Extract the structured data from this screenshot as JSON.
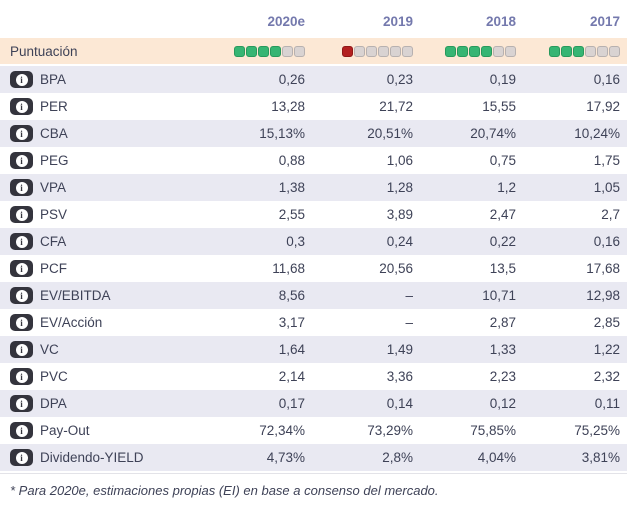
{
  "table": {
    "columns": [
      "2020e",
      "2019",
      "2018",
      "2017"
    ],
    "score_row": {
      "label": "Puntuación",
      "ratings": [
        {
          "filled": 4,
          "total": 6,
          "color": "green"
        },
        {
          "filled": 1,
          "total": 6,
          "color": "red"
        },
        {
          "filled": 4,
          "total": 6,
          "color": "green"
        },
        {
          "filled": 3,
          "total": 6,
          "color": "green"
        }
      ]
    },
    "rows": [
      {
        "label": "BPA",
        "values": [
          "0,26",
          "0,23",
          "0,19",
          "0,16"
        ]
      },
      {
        "label": "PER",
        "values": [
          "13,28",
          "21,72",
          "15,55",
          "17,92"
        ]
      },
      {
        "label": "CBA",
        "values": [
          "15,13%",
          "20,51%",
          "20,74%",
          "10,24%"
        ]
      },
      {
        "label": "PEG",
        "values": [
          "0,88",
          "1,06",
          "0,75",
          "1,75"
        ]
      },
      {
        "label": "VPA",
        "values": [
          "1,38",
          "1,28",
          "1,2",
          "1,05"
        ]
      },
      {
        "label": "PSV",
        "values": [
          "2,55",
          "3,89",
          "2,47",
          "2,7"
        ]
      },
      {
        "label": "CFA",
        "values": [
          "0,3",
          "0,24",
          "0,22",
          "0,16"
        ]
      },
      {
        "label": "PCF",
        "values": [
          "11,68",
          "20,56",
          "13,5",
          "17,68"
        ]
      },
      {
        "label": "EV/EBITDA",
        "values": [
          "8,56",
          "–",
          "10,71",
          "12,98"
        ]
      },
      {
        "label": "EV/Acción",
        "values": [
          "3,17",
          "–",
          "2,87",
          "2,85"
        ]
      },
      {
        "label": "VC",
        "values": [
          "1,64",
          "1,49",
          "1,33",
          "1,22"
        ]
      },
      {
        "label": "PVC",
        "values": [
          "2,14",
          "3,36",
          "2,23",
          "2,32"
        ]
      },
      {
        "label": "DPA",
        "values": [
          "0,17",
          "0,14",
          "0,12",
          "0,11"
        ]
      },
      {
        "label": "Pay-Out",
        "values": [
          "72,34%",
          "73,29%",
          "75,85%",
          "75,25%"
        ]
      },
      {
        "label": "Dividendo-YIELD",
        "values": [
          "4,73%",
          "2,8%",
          "4,04%",
          "3,81%"
        ]
      }
    ],
    "footnote": "* Para 2020e, estimaciones propias (EI) en base a consenso del mercado."
  },
  "icons": {
    "info": "i"
  },
  "colors": {
    "text": "#3e4257",
    "header_text": "#7479ad",
    "score_row_bg": "#fce8d5",
    "alt_row_bg": "#e9e9f2",
    "rating_green": "#36b573",
    "rating_red": "#b32020",
    "rating_empty": "#d9d3d2",
    "info_icon_bg": "#34343d"
  }
}
